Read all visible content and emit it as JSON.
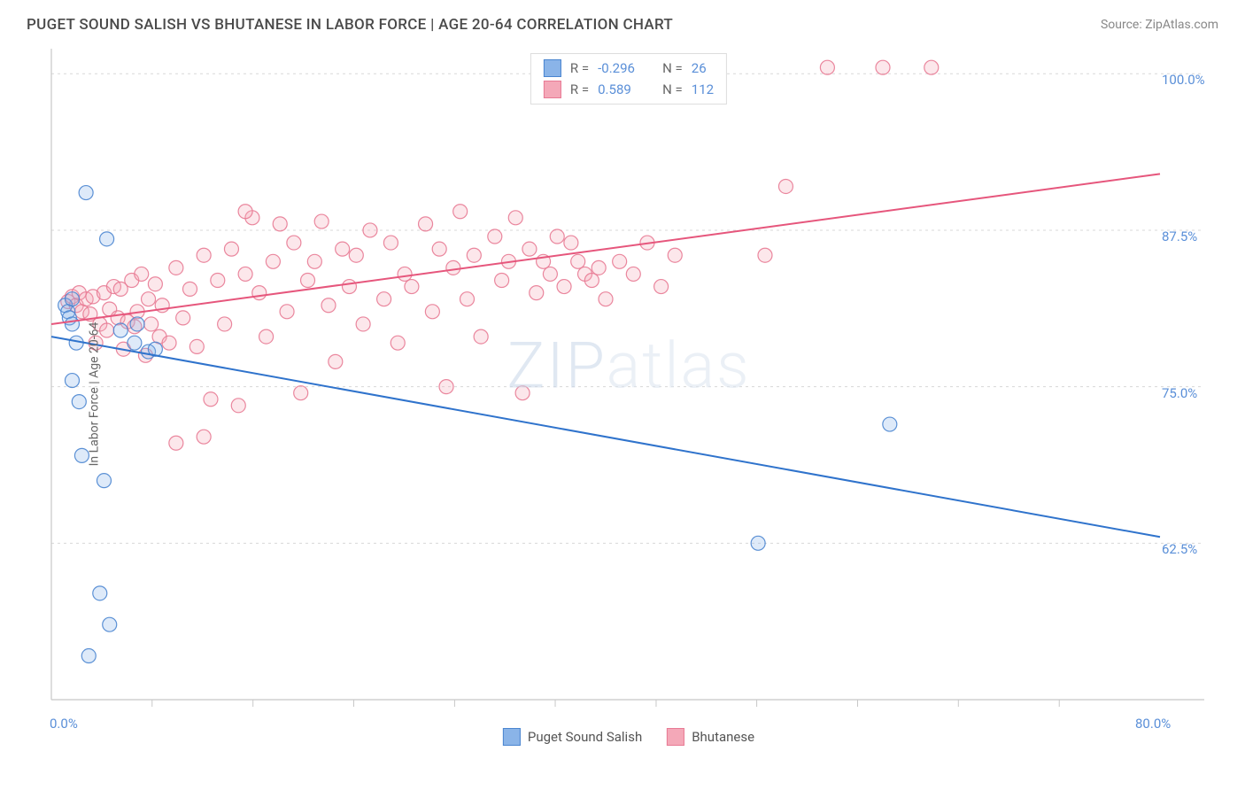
{
  "title": "PUGET SOUND SALISH VS BHUTANESE IN LABOR FORCE | AGE 20-64 CORRELATION CHART",
  "source": "Source: ZipAtlas.com",
  "watermark": "ZIPatlas",
  "y_axis_label": "In Labor Force | Age 20-64",
  "chart": {
    "type": "scatter",
    "xlim": [
      0,
      80
    ],
    "ylim": [
      50,
      102
    ],
    "x_ticks": [
      {
        "v": 0,
        "label": "0.0%"
      },
      {
        "v": 80,
        "label": "80.0%"
      }
    ],
    "x_minor_ticks": [
      7.27,
      14.55,
      21.82,
      29.1,
      36.36,
      43.64,
      50.9,
      58.18,
      65.45,
      72.73
    ],
    "y_ticks": [
      {
        "v": 62.5,
        "label": "62.5%"
      },
      {
        "v": 75.0,
        "label": "75.0%"
      },
      {
        "v": 87.5,
        "label": "87.5%"
      },
      {
        "v": 100.0,
        "label": "100.0%"
      }
    ],
    "grid_color": "#d8d8d8",
    "axis_color": "#c8c8c8",
    "background_color": "#ffffff",
    "marker_radius": 8,
    "marker_fill_opacity": 0.28,
    "marker_stroke_opacity": 0.9,
    "marker_stroke_width": 1.2,
    "trend_line_width": 2
  },
  "series": [
    {
      "name": "Puget Sound Salish",
      "color_fill": "#8ab4e8",
      "color_stroke": "#4a85d0",
      "color_line": "#2f73cc",
      "r": "-0.296",
      "n": "26",
      "trend": {
        "x1": 0,
        "y1": 79,
        "x2": 80,
        "y2": 63
      },
      "points": [
        [
          1.0,
          81.5
        ],
        [
          1.2,
          81.0
        ],
        [
          1.3,
          80.5
        ],
        [
          1.5,
          82.0
        ],
        [
          1.5,
          80.0
        ],
        [
          2.5,
          90.5
        ],
        [
          4.0,
          86.8
        ],
        [
          1.8,
          78.5
        ],
        [
          1.5,
          75.5
        ],
        [
          2.0,
          73.8
        ],
        [
          2.2,
          69.5
        ],
        [
          3.8,
          67.5
        ],
        [
          5.0,
          79.5
        ],
        [
          6.2,
          80.0
        ],
        [
          6.0,
          78.5
        ],
        [
          7.0,
          77.8
        ],
        [
          7.5,
          78.0
        ],
        [
          3.5,
          58.5
        ],
        [
          4.2,
          56.0
        ],
        [
          2.7,
          53.5
        ],
        [
          51.0,
          62.5
        ],
        [
          60.5,
          72.0
        ]
      ]
    },
    {
      "name": "Bhutanese",
      "color_fill": "#f4a8b8",
      "color_stroke": "#e87a94",
      "color_line": "#e6567c",
      "r": "0.589",
      "n": "112",
      "trend": {
        "x1": 0,
        "y1": 80,
        "x2": 80,
        "y2": 92
      },
      "points": [
        [
          1.2,
          81.8
        ],
        [
          1.5,
          82.2
        ],
        [
          1.8,
          81.5
        ],
        [
          2.0,
          82.5
        ],
        [
          2.2,
          81.0
        ],
        [
          2.5,
          82.0
        ],
        [
          2.8,
          80.8
        ],
        [
          3.0,
          82.2
        ],
        [
          3.2,
          78.5
        ],
        [
          3.5,
          80.0
        ],
        [
          3.8,
          82.5
        ],
        [
          4.0,
          79.5
        ],
        [
          4.2,
          81.2
        ],
        [
          4.5,
          83.0
        ],
        [
          4.8,
          80.5
        ],
        [
          5.0,
          82.8
        ],
        [
          5.2,
          78.0
        ],
        [
          5.5,
          80.2
        ],
        [
          5.8,
          83.5
        ],
        [
          6.0,
          79.8
        ],
        [
          6.2,
          81.0
        ],
        [
          6.5,
          84.0
        ],
        [
          6.8,
          77.5
        ],
        [
          7.0,
          82.0
        ],
        [
          7.2,
          80.0
        ],
        [
          7.5,
          83.2
        ],
        [
          7.8,
          79.0
        ],
        [
          8.0,
          81.5
        ],
        [
          8.5,
          78.5
        ],
        [
          9.0,
          84.5
        ],
        [
          9.5,
          80.5
        ],
        [
          10.0,
          82.8
        ],
        [
          10.5,
          78.2
        ],
        [
          11.0,
          85.5
        ],
        [
          11.5,
          74.0
        ],
        [
          12.0,
          83.5
        ],
        [
          12.5,
          80.0
        ],
        [
          13.0,
          86.0
        ],
        [
          13.5,
          73.5
        ],
        [
          14.0,
          84.0
        ],
        [
          14.5,
          88.5
        ],
        [
          14.0,
          89.0
        ],
        [
          15.0,
          82.5
        ],
        [
          15.5,
          79.0
        ],
        [
          16.0,
          85.0
        ],
        [
          16.5,
          88.0
        ],
        [
          17.0,
          81.0
        ],
        [
          17.5,
          86.5
        ],
        [
          18.0,
          74.5
        ],
        [
          18.5,
          83.5
        ],
        [
          19.0,
          85.0
        ],
        [
          19.5,
          88.2
        ],
        [
          20.0,
          81.5
        ],
        [
          20.5,
          77.0
        ],
        [
          21.0,
          86.0
        ],
        [
          21.5,
          83.0
        ],
        [
          22.0,
          85.5
        ],
        [
          22.5,
          80.0
        ],
        [
          23.0,
          87.5
        ],
        [
          24.0,
          82.0
        ],
        [
          24.5,
          86.5
        ],
        [
          25.0,
          78.5
        ],
        [
          25.5,
          84.0
        ],
        [
          26.0,
          83.0
        ],
        [
          27.0,
          88.0
        ],
        [
          27.5,
          81.0
        ],
        [
          28.0,
          86.0
        ],
        [
          28.5,
          75.0
        ],
        [
          29.0,
          84.5
        ],
        [
          29.5,
          89.0
        ],
        [
          30.0,
          82.0
        ],
        [
          30.5,
          85.5
        ],
        [
          31.0,
          79.0
        ],
        [
          32.0,
          87.0
        ],
        [
          32.5,
          83.5
        ],
        [
          33.0,
          85.0
        ],
        [
          33.5,
          88.5
        ],
        [
          34.0,
          74.5
        ],
        [
          34.5,
          86.0
        ],
        [
          35.0,
          82.5
        ],
        [
          35.5,
          85.0
        ],
        [
          36.0,
          84.0
        ],
        [
          36.5,
          87.0
        ],
        [
          37.0,
          83.0
        ],
        [
          37.5,
          86.5
        ],
        [
          38.0,
          85.0
        ],
        [
          38.5,
          84.0
        ],
        [
          39.0,
          83.5
        ],
        [
          39.5,
          84.5
        ],
        [
          40.0,
          82.0
        ],
        [
          41.0,
          85.0
        ],
        [
          42.0,
          84.0
        ],
        [
          43.0,
          86.5
        ],
        [
          44.0,
          83.0
        ],
        [
          45.0,
          85.5
        ],
        [
          9.0,
          70.5
        ],
        [
          11.0,
          71.0
        ],
        [
          51.5,
          85.5
        ],
        [
          53.0,
          91.0
        ],
        [
          56.0,
          100.5
        ],
        [
          60.0,
          100.5
        ],
        [
          63.5,
          100.5
        ]
      ]
    }
  ],
  "legend_bottom": [
    {
      "swatch_fill": "#8ab4e8",
      "swatch_stroke": "#4a85d0",
      "label": "Puget Sound Salish"
    },
    {
      "swatch_fill": "#f4a8b8",
      "swatch_stroke": "#e87a94",
      "label": "Bhutanese"
    }
  ]
}
